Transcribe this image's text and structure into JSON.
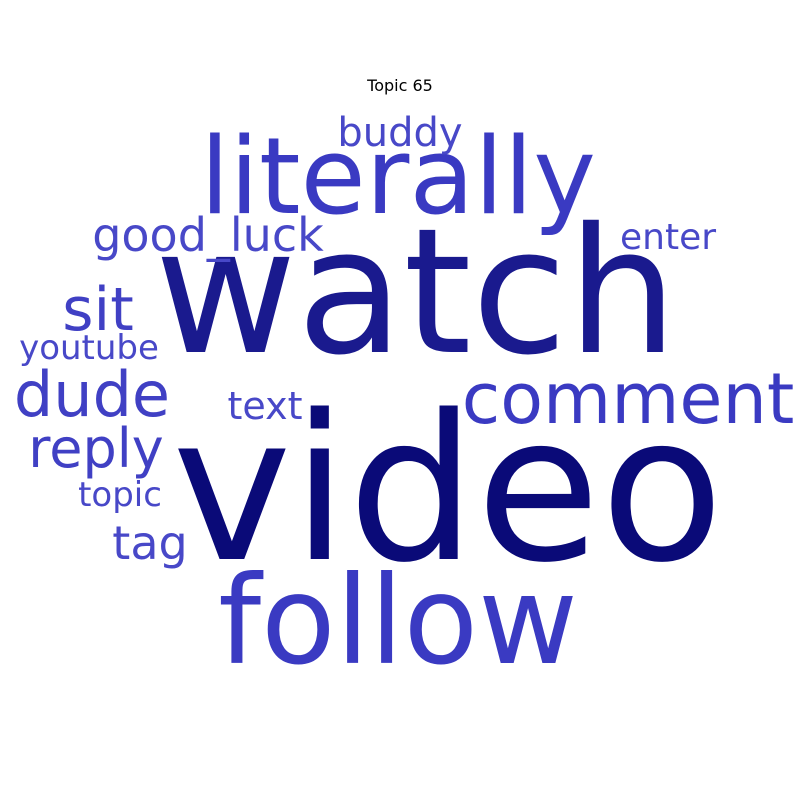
{
  "title": "Topic 65",
  "colors": {
    "darkest": "#0a0a78",
    "dark": "#1a1a8e",
    "medium": "#3a3ac2",
    "light": "#4848c8"
  },
  "words": [
    {
      "text": "video",
      "color": "#0a0a78"
    },
    {
      "text": "watch",
      "color": "#1a1a8e"
    },
    {
      "text": "literally",
      "color": "#3a3ac2"
    },
    {
      "text": "follow",
      "color": "#3a3ac2"
    },
    {
      "text": "comment",
      "color": "#3a3ac2"
    },
    {
      "text": "dude",
      "color": "#4040c4"
    },
    {
      "text": "good_luck",
      "color": "#4848c8"
    },
    {
      "text": "sit",
      "color": "#4040c4"
    },
    {
      "text": "reply",
      "color": "#4040c4"
    },
    {
      "text": "buddy",
      "color": "#4848c8"
    },
    {
      "text": "youtube",
      "color": "#4848c8"
    },
    {
      "text": "enter",
      "color": "#4848c8"
    },
    {
      "text": "text",
      "color": "#4848c8"
    },
    {
      "text": "tag",
      "color": "#4848c8"
    },
    {
      "text": "topic",
      "color": "#4848c8"
    }
  ]
}
